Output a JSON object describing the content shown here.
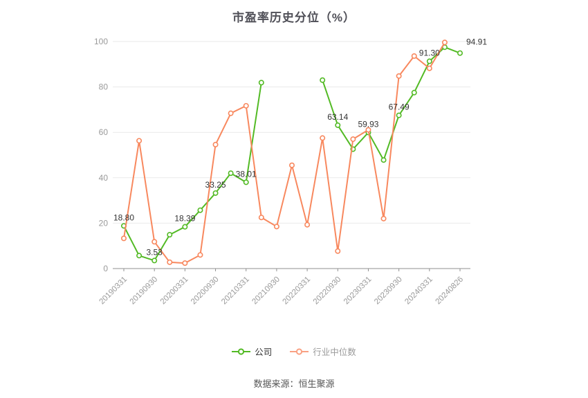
{
  "page": {
    "background": "#FFFFFF"
  },
  "header": {
    "title": "市盈率历史分位（%）",
    "title_color": "#4F4F57"
  },
  "footer": {
    "source_note": "数据来源：恒生聚源",
    "text_color": "#555555"
  },
  "legend": {
    "position": "bottom-center",
    "items": [
      {
        "key": "company",
        "label": "公司",
        "icon": "line-marker-icon",
        "color": "#52BA24",
        "text_color": "#333333"
      },
      {
        "key": "industry",
        "label": "行业中位数",
        "icon": "line-marker-icon",
        "color": "#F9A183",
        "text_color": "#999999"
      }
    ]
  },
  "axes": {
    "y_tick_labels": [
      "0",
      "20",
      "40",
      "60",
      "80",
      "100"
    ],
    "label_color": "#999999",
    "grid_color": "#E9E9E9",
    "axis_line_color": "#8F8F8F",
    "data_label_color": "#333333"
  },
  "chart_data": {
    "type": "line",
    "title": "市盈率历史分位（%）",
    "x_tick_labels": [
      "20190331",
      "20190930",
      "20200331",
      "20200930",
      "20210331",
      "20210930",
      "20220331",
      "20220930",
      "20230331",
      "20230930",
      "20240331",
      "20240826"
    ],
    "points_per_tick": 2,
    "num_points": 23,
    "ylim": [
      0,
      100
    ],
    "y_ticks": [
      0,
      20,
      40,
      60,
      80,
      100
    ],
    "grid": "horizontal-only",
    "legend_position": "bottom-center",
    "series": [
      {
        "key": "company",
        "name": "公司",
        "color": "#52BA24",
        "values": [
          18.8,
          5.7,
          3.53,
          14.9,
          18.39,
          25.7,
          33.25,
          42.0,
          38.01,
          81.9,
          null,
          null,
          null,
          83.0,
          63.14,
          52.6,
          59.93,
          47.8,
          67.49,
          77.5,
          91.3,
          97.5,
          94.91
        ],
        "point_labels": {
          "0": "18.80",
          "2": "3.53",
          "4": "18.39",
          "6": "33.25",
          "8": "38.01",
          "14": "63.14",
          "16": "59.93",
          "18": "67.49",
          "20": "91.30",
          "22": "94.91"
        },
        "label_overrides": {
          "22": {
            "dx": 9,
            "dy": -4,
            "anchor": "start"
          }
        }
      },
      {
        "key": "industry",
        "name": "行业中位数",
        "color": "#F8885E",
        "values": [
          13.3,
          56.3,
          11.8,
          2.8,
          2.4,
          6.0,
          54.6,
          68.4,
          71.7,
          22.5,
          18.5,
          45.5,
          19.3,
          57.5,
          7.7,
          57.0,
          61.1,
          22.0,
          84.8,
          93.6,
          88.2,
          99.6,
          null
        ],
        "point_labels": {}
      }
    ]
  }
}
